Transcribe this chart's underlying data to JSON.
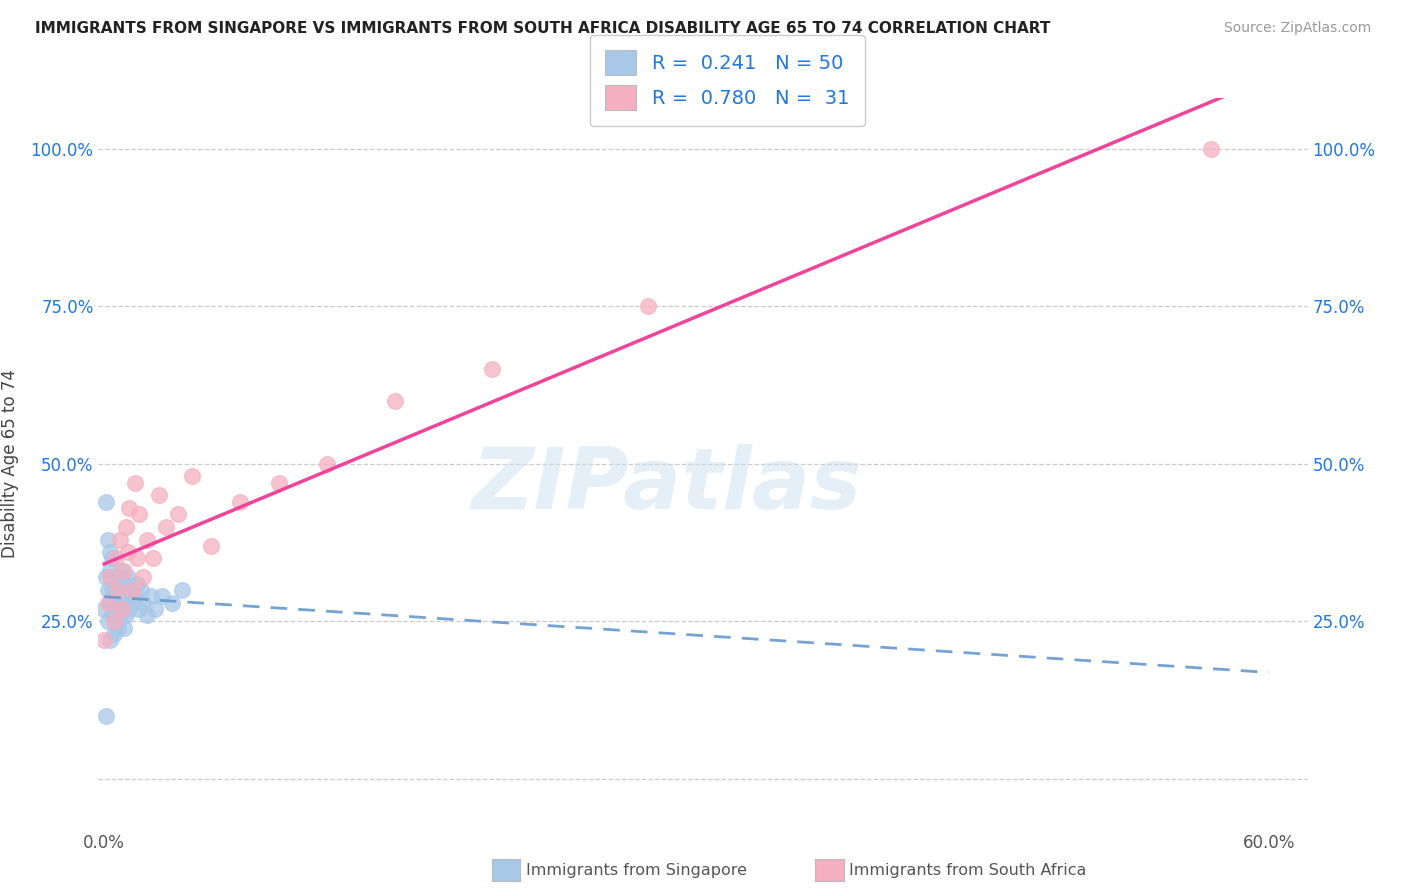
{
  "title": "IMMIGRANTS FROM SINGAPORE VS IMMIGRANTS FROM SOUTH AFRICA DISABILITY AGE 65 TO 74 CORRELATION CHART",
  "source": "Source: ZipAtlas.com",
  "ylabel": "Disability Age 65 to 74",
  "xlim": [
    -0.003,
    0.62
  ],
  "ylim": [
    -0.08,
    1.08
  ],
  "x_ticks": [
    0.0,
    0.6
  ],
  "x_tick_labels": [
    "0.0%",
    "60.0%"
  ],
  "y_ticks": [
    0.0,
    0.25,
    0.5,
    0.75,
    1.0
  ],
  "y_tick_labels_left": [
    "",
    "25.0%",
    "50.0%",
    "75.0%",
    "100.0%"
  ],
  "y_tick_labels_right": [
    "",
    "25.0%",
    "50.0%",
    "75.0%",
    "100.0%"
  ],
  "singapore_color": "#a8c8e8",
  "south_africa_color": "#f4afc0",
  "singapore_R": 0.241,
  "singapore_N": 50,
  "south_africa_R": 0.78,
  "south_africa_N": 31,
  "singapore_line_color": "#6699cc",
  "south_africa_line_color": "#ee4499",
  "legend_R_color": "#2277dd",
  "watermark": "ZIPatlas",
  "singapore_x": [
    0.0,
    0.001,
    0.001,
    0.002,
    0.002,
    0.002,
    0.003,
    0.003,
    0.003,
    0.003,
    0.004,
    0.004,
    0.004,
    0.005,
    0.005,
    0.005,
    0.005,
    0.006,
    0.006,
    0.006,
    0.007,
    0.007,
    0.007,
    0.008,
    0.008,
    0.008,
    0.009,
    0.009,
    0.01,
    0.01,
    0.01,
    0.011,
    0.011,
    0.012,
    0.012,
    0.013,
    0.014,
    0.015,
    0.016,
    0.017,
    0.018,
    0.019,
    0.02,
    0.022,
    0.024,
    0.026,
    0.03,
    0.035,
    0.04,
    0.001
  ],
  "singapore_y": [
    0.27,
    0.44,
    0.32,
    0.38,
    0.3,
    0.25,
    0.33,
    0.28,
    0.22,
    0.36,
    0.3,
    0.26,
    0.35,
    0.29,
    0.23,
    0.32,
    0.27,
    0.31,
    0.25,
    0.28,
    0.3,
    0.24,
    0.27,
    0.32,
    0.26,
    0.29,
    0.28,
    0.33,
    0.27,
    0.31,
    0.24,
    0.29,
    0.26,
    0.28,
    0.32,
    0.27,
    0.3,
    0.28,
    0.29,
    0.31,
    0.27,
    0.3,
    0.28,
    0.26,
    0.29,
    0.27,
    0.29,
    0.28,
    0.3,
    0.1
  ],
  "south_africa_x": [
    0.0,
    0.002,
    0.003,
    0.005,
    0.006,
    0.007,
    0.008,
    0.009,
    0.01,
    0.011,
    0.012,
    0.013,
    0.015,
    0.016,
    0.017,
    0.018,
    0.02,
    0.022,
    0.025,
    0.028,
    0.032,
    0.038,
    0.045,
    0.055,
    0.07,
    0.09,
    0.115,
    0.15,
    0.2,
    0.28,
    0.57
  ],
  "south_africa_y": [
    0.22,
    0.28,
    0.32,
    0.25,
    0.35,
    0.3,
    0.38,
    0.27,
    0.33,
    0.4,
    0.36,
    0.43,
    0.3,
    0.47,
    0.35,
    0.42,
    0.32,
    0.38,
    0.35,
    0.45,
    0.4,
    0.42,
    0.48,
    0.37,
    0.44,
    0.47,
    0.5,
    0.6,
    0.65,
    0.75,
    1.0
  ]
}
